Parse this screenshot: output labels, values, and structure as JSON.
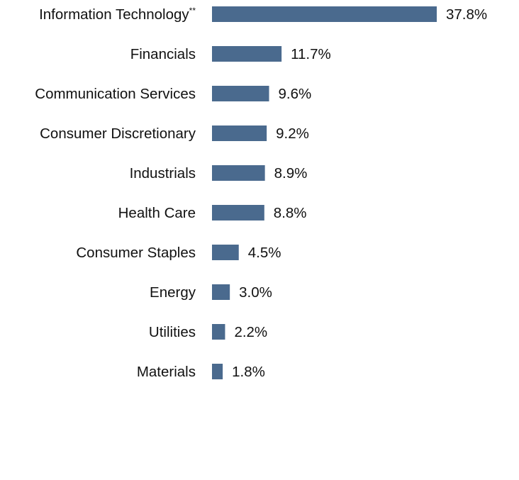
{
  "chart_data": {
    "type": "bar",
    "orientation": "horizontal",
    "categories": [
      "Information Technology",
      "Financials",
      "Communication Services",
      "Consumer Discretionary",
      "Industrials",
      "Health Care",
      "Consumer Staples",
      "Energy",
      "Utilities",
      "Materials"
    ],
    "category_footnotes": [
      "**",
      "",
      "",
      "",
      "",
      "",
      "",
      "",
      "",
      ""
    ],
    "values": [
      37.8,
      11.7,
      9.6,
      9.2,
      8.9,
      8.8,
      4.5,
      3.0,
      2.2,
      1.8
    ],
    "value_labels": [
      "37.8%",
      "11.7%",
      "9.6%",
      "9.2%",
      "8.9%",
      "8.8%",
      "4.5%",
      "3.0%",
      "2.2%",
      "1.8%"
    ],
    "xlim": [
      0,
      37.8
    ],
    "grid": false,
    "bar_color": "#4a6a8e",
    "text_color": "#111111"
  }
}
